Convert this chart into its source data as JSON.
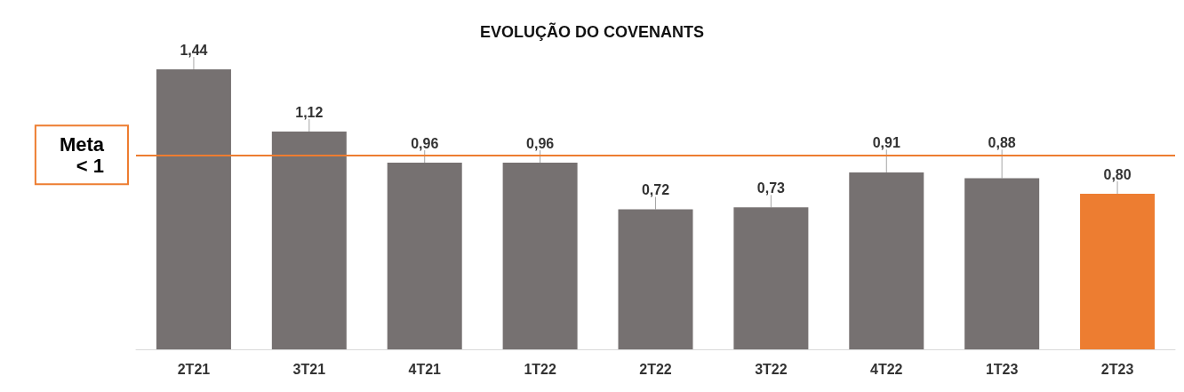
{
  "chart_data": {
    "type": "bar",
    "title": "EVOLUÇÃO DO COVENANTS",
    "categories": [
      "2T21",
      "3T21",
      "4T21",
      "1T22",
      "2T22",
      "3T22",
      "4T22",
      "1T23",
      "2T23"
    ],
    "values": [
      1.44,
      1.12,
      0.96,
      0.96,
      0.72,
      0.73,
      0.91,
      0.88,
      0.8
    ],
    "colors": [
      "#767171",
      "#767171",
      "#767171",
      "#767171",
      "#767171",
      "#767171",
      "#767171",
      "#767171",
      "#ed7d31"
    ],
    "value_labels": [
      "1,44",
      "1,12",
      "0,96",
      "0,96",
      "0,72",
      "0,73",
      "0,91",
      "0,88",
      "0,80"
    ],
    "ref_lines": [
      {
        "axis": "y",
        "value": 1,
        "label": "Meta\n< 1",
        "color": "#ed7d31"
      }
    ]
  }
}
